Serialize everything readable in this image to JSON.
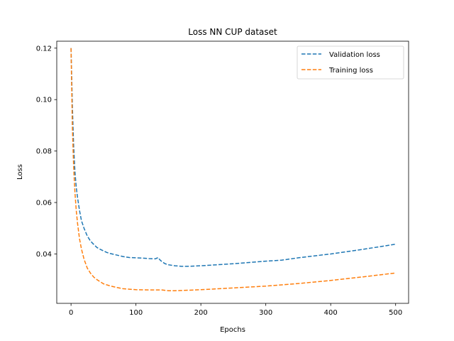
{
  "chart_data": {
    "type": "line",
    "title": "Loss NN CUP dataset",
    "xlabel": "Epochs",
    "ylabel": "Loss",
    "xlim": [
      -22,
      520
    ],
    "ylim": [
      0.0208,
      0.1227
    ],
    "xticks": [
      0,
      100,
      200,
      300,
      400,
      500
    ],
    "yticks": [
      0.04,
      0.06,
      0.08,
      0.1,
      0.12
    ],
    "xtick_labels": [
      "0",
      "100",
      "200",
      "300",
      "400",
      "500"
    ],
    "ytick_labels": [
      "0.04",
      "0.06",
      "0.08",
      "0.10",
      "0.12"
    ],
    "grid": false,
    "legend_position": "top-right",
    "series": [
      {
        "name": "Validation loss",
        "color": "#1f77b4",
        "dash": "dashed",
        "x": [
          0,
          2,
          4,
          6,
          8,
          10,
          13,
          16,
          20,
          25,
          30,
          35,
          40,
          45,
          50,
          55,
          60,
          70,
          80,
          90,
          100,
          110,
          120,
          130,
          134,
          137,
          140,
          145,
          150,
          160,
          170,
          180,
          200,
          250,
          300,
          325,
          350,
          400,
          450,
          500
        ],
        "y": [
          0.12,
          0.098,
          0.082,
          0.072,
          0.066,
          0.062,
          0.057,
          0.053,
          0.05,
          0.047,
          0.045,
          0.0437,
          0.0425,
          0.0418,
          0.0412,
          0.0406,
          0.0402,
          0.0396,
          0.039,
          0.0386,
          0.0385,
          0.0384,
          0.0382,
          0.0381,
          0.0386,
          0.0377,
          0.037,
          0.0362,
          0.0358,
          0.0354,
          0.0352,
          0.0352,
          0.0354,
          0.0362,
          0.0372,
          0.0376,
          0.0385,
          0.04,
          0.0418,
          0.0438
        ]
      },
      {
        "name": "Training loss",
        "color": "#ff7f0e",
        "dash": "dashed",
        "x": [
          0,
          2,
          4,
          6,
          8,
          10,
          13,
          16,
          20,
          25,
          30,
          35,
          40,
          45,
          50,
          55,
          60,
          70,
          80,
          90,
          100,
          120,
          140,
          150,
          160,
          200,
          250,
          300,
          350,
          400,
          450,
          500
        ],
        "y": [
          0.12,
          0.09,
          0.074,
          0.064,
          0.057,
          0.052,
          0.046,
          0.042,
          0.038,
          0.0345,
          0.0325,
          0.031,
          0.03,
          0.0292,
          0.0284,
          0.028,
          0.0276,
          0.027,
          0.0265,
          0.0263,
          0.0261,
          0.026,
          0.026,
          0.0257,
          0.0257,
          0.0261,
          0.0268,
          0.0275,
          0.0285,
          0.0297,
          0.0311,
          0.0326
        ]
      }
    ]
  }
}
